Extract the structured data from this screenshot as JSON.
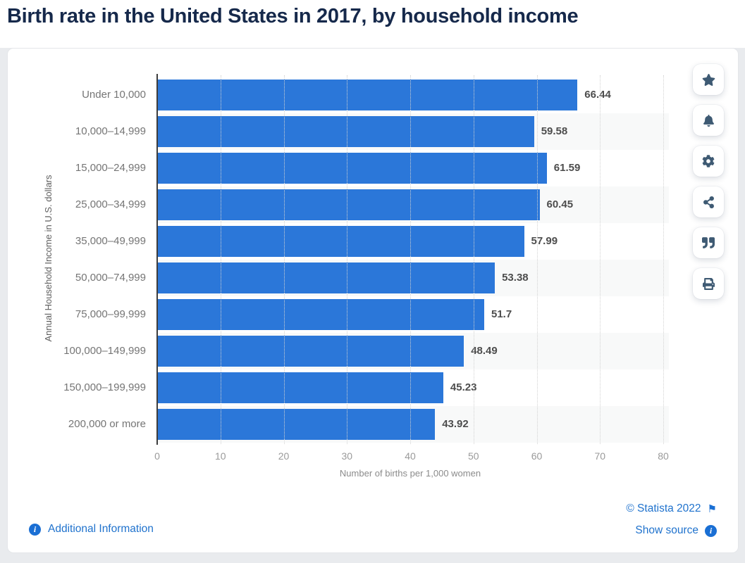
{
  "page": {
    "title": "Birth rate in the United States in 2017, by household income"
  },
  "chart_data": {
    "type": "bar",
    "orientation": "horizontal",
    "title": "Birth rate in the United States in 2017, by household income",
    "categories": [
      "Under 10,000",
      "10,000–14,999",
      "15,000–24,999",
      "25,000–34,999",
      "35,000–49,999",
      "50,000–74,999",
      "75,000–99,999",
      "100,000–149,999",
      "150,000–199,999",
      "200,000 or more"
    ],
    "values": [
      66.44,
      59.58,
      61.59,
      60.45,
      57.99,
      53.38,
      51.7,
      48.49,
      45.23,
      43.92
    ],
    "value_labels": [
      "66.44",
      "59.58",
      "61.59",
      "60.45",
      "57.99",
      "53.38",
      "51.7",
      "48.49",
      "45.23",
      "43.92"
    ],
    "xlabel": "Number of births per 1,000 women",
    "ylabel": "Annual Household Income in U.S. dollars",
    "xlim": [
      0,
      80
    ],
    "xticks": [
      0,
      10,
      20,
      30,
      40,
      50,
      60,
      70,
      80
    ],
    "grid": "vertical-dotted",
    "legend": "none",
    "bar_color": "#2b77d9"
  },
  "toolbar": {
    "icons": [
      "star-icon",
      "bell-icon",
      "gear-icon",
      "share-icon",
      "quote-icon",
      "print-icon"
    ]
  },
  "footer": {
    "additional_info_label": "Additional Information",
    "copyright": "© Statista 2022",
    "show_source_label": "Show source",
    "info_glyph": "i",
    "flag_glyph": "⚑"
  },
  "colors": {
    "bar": "#2b77d9",
    "title_text": "#16294b",
    "link_blue": "#1f72cd",
    "icon_slate": "#3e5a73",
    "stripe": "#f8f9f9",
    "page_background": "#e9ebee"
  }
}
